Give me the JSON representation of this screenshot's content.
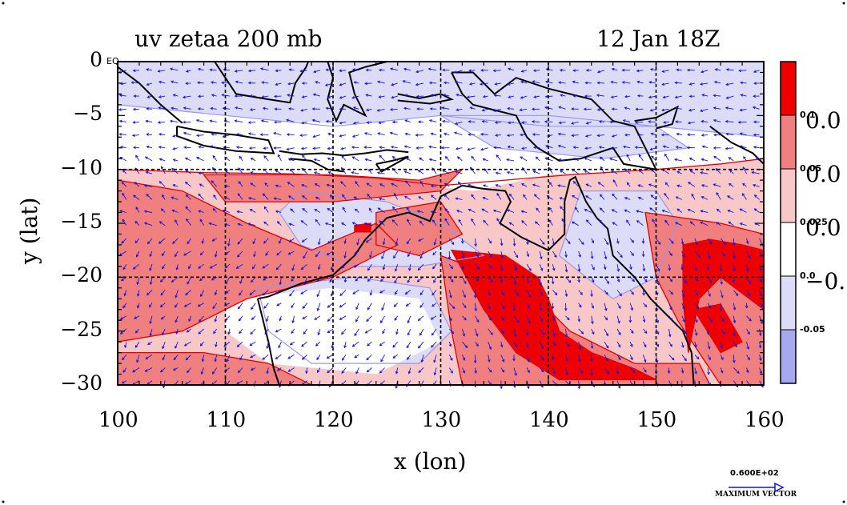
{
  "figure": {
    "title_left": "uv zetaa 200 mb",
    "title_right": "12 Jan 18Z",
    "x_axis_label": "x (lon)",
    "y_axis_label": "y (lat)",
    "corner_tag": "EQ"
  },
  "map_data": {
    "type": "contour_vector_map",
    "variable": "zetaa",
    "level": "200 mb",
    "lon_range": [
      100,
      160
    ],
    "lat_range": [
      -30,
      0
    ],
    "x_ticks": [
      "100",
      "110",
      "120",
      "130",
      "140",
      "150",
      "160"
    ],
    "x_tick_values": [
      100,
      110,
      120,
      130,
      140,
      150,
      160
    ],
    "y_ticks": [
      "0",
      "−5",
      "−10",
      "−15",
      "−20",
      "−25",
      "−30"
    ],
    "y_tick_values": [
      0,
      -5,
      -10,
      -15,
      -20,
      -25,
      -30
    ],
    "grid_lons": [
      110,
      120,
      130,
      140,
      150
    ],
    "grid_lats": [
      -10,
      -20
    ]
  },
  "colorbar": {
    "levels": [
      0.1,
      0.05,
      0.025,
      0.0,
      -0.05
    ],
    "small_labels": [
      "0.1",
      "0.05",
      "0.025",
      "0.0",
      "-0.05"
    ],
    "big_labels": [
      "0.0",
      "0.0",
      "0.0",
      "−0."
    ],
    "colors": [
      "#ee0000",
      "#f08080",
      "#f8c8c8",
      "#ffffff",
      "#dcdcf8",
      "#a8a8ee"
    ]
  },
  "vector_key": {
    "magnitude": "0.600E+02",
    "caption": "MAXIMUM VECTOR"
  },
  "colors": {
    "positive_strong": "#ee0000",
    "positive_mid": "#f08080",
    "positive_light": "#f8c8c8",
    "negative_light": "#dcdcf8",
    "negative_mid": "#a8a8ee",
    "contour": "#e00000",
    "neg_contour": "#9898e8",
    "vectors": "#1414dd",
    "coast": "#000000"
  }
}
